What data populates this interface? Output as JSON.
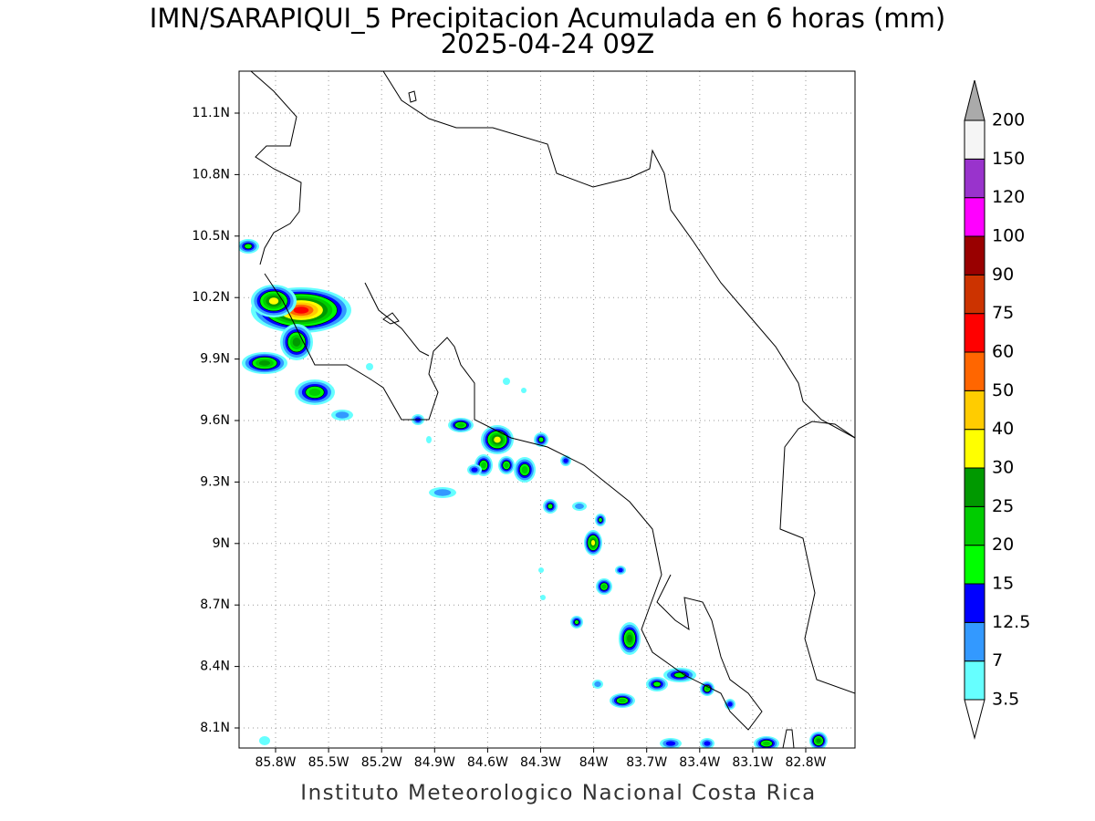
{
  "title": "IMN/SARAPIQUI_5 Precipitacion Acumulada en 6 horas (mm)",
  "subtitle": "2025-04-24 09Z",
  "footer": "Instituto Meteorologico Nacional Costa Rica",
  "map": {
    "lon_labels": [
      "85.8W",
      "85.5W",
      "85.2W",
      "84.9W",
      "84.6W",
      "84.3W",
      "84W",
      "83.7W",
      "83.4W",
      "83.1W",
      "82.8W"
    ],
    "lat_labels": [
      "11.1N",
      "10.8N",
      "10.5N",
      "10.2N",
      "9.9N",
      "9.6N",
      "9.3N",
      "9N",
      "8.7N",
      "8.4N",
      "8.1N"
    ]
  },
  "colorbar": {
    "levels": [
      "3.5",
      "7",
      "12.5",
      "15",
      "20",
      "25",
      "30",
      "40",
      "50",
      "60",
      "75",
      "90",
      "100",
      "120",
      "150",
      "200"
    ],
    "colors": [
      "#66ffff",
      "#3399ff",
      "#0000ff",
      "#00ff00",
      "#00cc00",
      "#009900",
      "#ffff00",
      "#ffcc00",
      "#ff6600",
      "#ff0000",
      "#cc3300",
      "#990000",
      "#ff00ff",
      "#9933cc",
      "#f5f5f5"
    ],
    "under_color": "#ffffff",
    "over_color": "#aaaaaa"
  }
}
